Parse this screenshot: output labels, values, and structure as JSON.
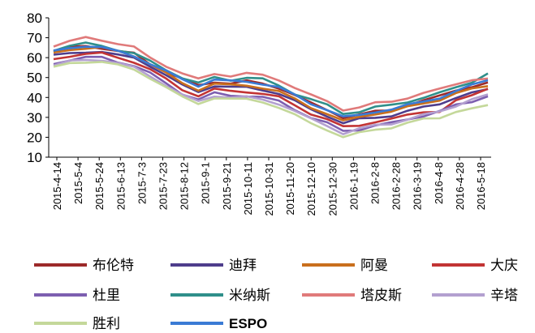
{
  "chart_data": {
    "type": "line",
    "title": "",
    "xlabel": "",
    "ylabel": "",
    "ylim": [
      10,
      80
    ],
    "y_ticks": [
      "10",
      "20",
      "30",
      "40",
      "50",
      "60",
      "70",
      "80"
    ],
    "x_ticks": [
      "2015-4-14",
      "2015-5-4",
      "2015-5-24",
      "2015-6-13",
      "2015-7-3",
      "2015-7-23",
      "2015-8-12",
      "2015-9-1",
      "2015-9-21",
      "2015-10-11",
      "2015-10-31",
      "2015-11-20",
      "2015-12-10",
      "2015-12-30",
      "2016-1-19",
      "2016-2-8",
      "2016-2-28",
      "2016-3-19",
      "2016-4-8",
      "2016-4-28",
      "2016-5-18"
    ],
    "grid": false,
    "legend_position": "bottom",
    "series": [
      {
        "name": "布伦特",
        "color": "#9c2a2a",
        "values": [
          63,
          65,
          66,
          65,
          63,
          62,
          57,
          53,
          49,
          46,
          48,
          47,
          48,
          47,
          45,
          41,
          37,
          34,
          30,
          31,
          33,
          34,
          36,
          38,
          41,
          44,
          45,
          47
        ]
      },
      {
        "name": "迪拜",
        "color": "#4e3d8c",
        "values": [
          61,
          62,
          63,
          63,
          61,
          60,
          56,
          51,
          46,
          43,
          46,
          45,
          45,
          44,
          42,
          38,
          34,
          31,
          27,
          29,
          30,
          31,
          33,
          35,
          37,
          40,
          42,
          44
        ]
      },
      {
        "name": "阿曼",
        "color": "#c96f1d",
        "values": [
          62,
          64,
          65,
          65,
          63,
          61,
          57,
          52,
          47,
          44,
          47,
          46,
          46,
          45,
          43,
          39,
          35,
          32,
          28,
          30,
          32,
          33,
          35,
          37,
          39,
          42,
          44,
          46
        ]
      },
      {
        "name": "大庆",
        "color": "#c23434",
        "values": [
          59,
          61,
          62,
          62,
          60,
          58,
          54,
          49,
          44,
          41,
          44,
          43,
          43,
          42,
          40,
          36,
          32,
          29,
          25,
          26,
          28,
          29,
          31,
          33,
          33,
          38,
          41,
          45
        ]
      },
      {
        "name": "杜里",
        "color": "#7d5fb0",
        "values": [
          57,
          59,
          60,
          60,
          58,
          56,
          52,
          47,
          42,
          39,
          42,
          41,
          41,
          40,
          38,
          34,
          30,
          27,
          23,
          24,
          26,
          27,
          29,
          31,
          33,
          36,
          38,
          41
        ]
      },
      {
        "name": "米纳斯",
        "color": "#2f8f8a",
        "values": [
          64,
          66,
          67,
          66,
          64,
          62,
          58,
          54,
          50,
          47,
          50,
          49,
          50,
          49,
          46,
          42,
          39,
          36,
          32,
          33,
          35,
          36,
          38,
          40,
          42,
          45,
          48,
          52
        ]
      },
      {
        "name": "塔皮斯",
        "color": "#e07a7a",
        "values": [
          66,
          68,
          70,
          69,
          67,
          65,
          60,
          56,
          52,
          49,
          52,
          51,
          52,
          51,
          49,
          45,
          41,
          38,
          34,
          35,
          37,
          38,
          40,
          42,
          44,
          47,
          49,
          49
        ]
      },
      {
        "name": "辛塔",
        "color": "#b3a0d0",
        "values": [
          56,
          58,
          59,
          59,
          57,
          55,
          51,
          46,
          41,
          38,
          41,
          40,
          40,
          39,
          37,
          33,
          29,
          26,
          22,
          24,
          26,
          27,
          29,
          31,
          33,
          36,
          39,
          41
        ]
      },
      {
        "name": "胜利",
        "color": "#c4d89a",
        "values": [
          55,
          57,
          58,
          58,
          56,
          54,
          50,
          45,
          40,
          37,
          40,
          39,
          39,
          38,
          35,
          31,
          27,
          24,
          20,
          22,
          24,
          25,
          27,
          29,
          30,
          33,
          34,
          36
        ]
      },
      {
        "name": "ESPO",
        "color": "#3a7bd5",
        "values": [
          63,
          65,
          66,
          65,
          63,
          61,
          57,
          53,
          49,
          46,
          49,
          48,
          48,
          47,
          45,
          41,
          37,
          34,
          30,
          31,
          33,
          34,
          36,
          38,
          40,
          43,
          46,
          49
        ]
      }
    ]
  }
}
